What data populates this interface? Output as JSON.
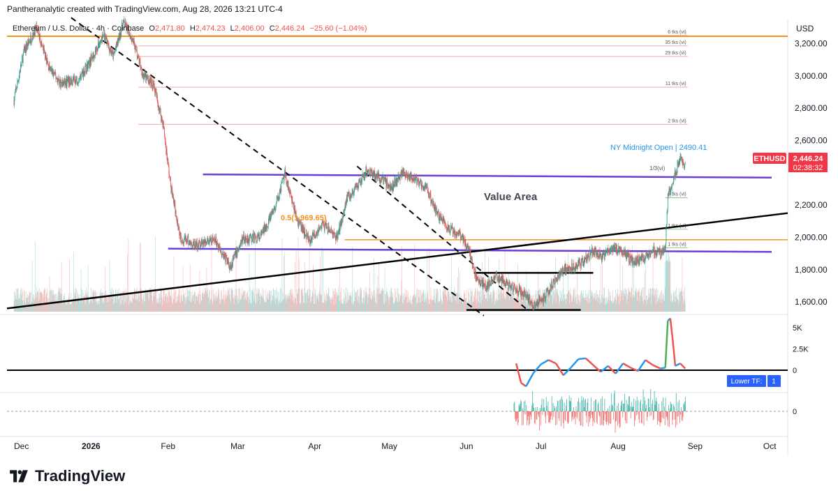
{
  "header": {
    "credit": "Pantheranalytic created with TradingView.com, Aug 28, 2026 13:21 UTC-4"
  },
  "branding": {
    "name": "TradingView"
  },
  "colors": {
    "up": "#26a69a",
    "down": "#ef5350",
    "purple": "#6a3fd6",
    "orange": "#f7931a",
    "black": "#000000",
    "symbol_badge": "#f23645",
    "blue_label": "#2962ff",
    "nymo": "#2196f3",
    "green_line": "#4caf50",
    "level_line": "#e57373"
  },
  "chart_data": [
    {
      "type": "candlestick",
      "symbol_line": {
        "name": "Ethereum / U.S. Dollar · 4h · Coinbase",
        "o_label": "O",
        "o": "2,471.80",
        "h_label": "H",
        "h": "2,474.23",
        "l_label": "L",
        "l": "2,406.00",
        "c_label": "C",
        "c": "2,446.24",
        "change": "−25.60 (−1.04%)"
      },
      "currency": "USD",
      "y_ticks": [
        "3,200.00",
        "3,000.00",
        "2,800.00",
        "2,600.00",
        "2,200.00",
        "2,000.00",
        "1,800.00",
        "1,600.00"
      ],
      "y_tick_values": [
        3200,
        3000,
        2800,
        2600,
        2200,
        2000,
        1800,
        1600
      ],
      "ylim": [
        1540,
        3340
      ],
      "x_ticks": [
        "Dec",
        "2026",
        "Feb",
        "Mar",
        "Apr",
        "May",
        "Jun",
        "Jul",
        "Aug",
        "Sep",
        "Oct"
      ],
      "price_label": {
        "symbol": "ETHUSD",
        "price": "2,446.24",
        "countdown": "02:38:32",
        "value": 2446.24
      },
      "annotations": {
        "value_area": "Value Area",
        "ny_midnight": "NY Midnight Open | 2490.41",
        "fib": "0.5(1,969.65)",
        "dashed_label": "1/3(vi)"
      },
      "levels": [
        {
          "label": "6 tks (vi)",
          "price": 3250
        },
        {
          "label": "35 tks (vi)",
          "price": 3185
        },
        {
          "label": "29 tks (vi)",
          "price": 3120
        },
        {
          "label": "11 tks (vi)",
          "price": 2930
        },
        {
          "label": "2 tks (vi)",
          "price": 2700
        },
        {
          "label": "5 tks (vi)",
          "price": 2245
        },
        {
          "label": "1 tks (vi)",
          "price": 2050
        },
        {
          "label": "1 tks (vi)",
          "price": 1935
        }
      ],
      "key_lines": {
        "orange_top": 3245,
        "orange_mid": 1985,
        "purple_upper": 2390,
        "purple_lower": 1930,
        "black_upper": 1780,
        "black_lower": 1550
      },
      "price_path": [
        [
          "2025-11-25",
          2950
        ],
        [
          "2025-12-01",
          2850
        ],
        [
          "2025-12-05",
          3150
        ],
        [
          "2025-12-10",
          3300
        ],
        [
          "2025-12-15",
          3050
        ],
        [
          "2025-12-20",
          2950
        ],
        [
          "2025-12-27",
          2980
        ],
        [
          "2026-01-01",
          3100
        ],
        [
          "2026-01-06",
          3250
        ],
        [
          "2026-01-10",
          3120
        ],
        [
          "2026-01-14",
          3330
        ],
        [
          "2026-01-18",
          3220
        ],
        [
          "2026-01-22",
          3000
        ],
        [
          "2026-01-26",
          2950
        ],
        [
          "2026-01-30",
          2700
        ],
        [
          "2026-02-02",
          2320
        ],
        [
          "2026-02-06",
          2000
        ],
        [
          "2026-02-12",
          1950
        ],
        [
          "2026-02-20",
          1980
        ],
        [
          "2026-02-26",
          1820
        ],
        [
          "2026-03-03",
          1990
        ],
        [
          "2026-03-10",
          2000
        ],
        [
          "2026-03-16",
          2180
        ],
        [
          "2026-03-20",
          2390
        ],
        [
          "2026-03-25",
          2100
        ],
        [
          "2026-03-30",
          1980
        ],
        [
          "2026-04-04",
          2080
        ],
        [
          "2026-04-10",
          2000
        ],
        [
          "2026-04-14",
          2250
        ],
        [
          "2026-04-18",
          2300
        ],
        [
          "2026-04-22",
          2420
        ],
        [
          "2026-04-28",
          2360
        ],
        [
          "2026-05-02",
          2310
        ],
        [
          "2026-05-06",
          2400
        ],
        [
          "2026-05-12",
          2350
        ],
        [
          "2026-05-16",
          2300
        ],
        [
          "2026-05-20",
          2150
        ],
        [
          "2026-05-25",
          2050
        ],
        [
          "2026-05-30",
          2010
        ],
        [
          "2026-06-02",
          1930
        ],
        [
          "2026-06-05",
          1740
        ],
        [
          "2026-06-09",
          1700
        ],
        [
          "2026-06-13",
          1760
        ],
        [
          "2026-06-17",
          1720
        ],
        [
          "2026-06-21",
          1680
        ],
        [
          "2026-06-25",
          1640
        ],
        [
          "2026-06-28",
          1580
        ],
        [
          "2026-07-02",
          1620
        ],
        [
          "2026-07-06",
          1720
        ],
        [
          "2026-07-10",
          1800
        ],
        [
          "2026-07-14",
          1820
        ],
        [
          "2026-07-18",
          1850
        ],
        [
          "2026-07-22",
          1920
        ],
        [
          "2026-07-26",
          1880
        ],
        [
          "2026-07-30",
          1940
        ],
        [
          "2026-08-03",
          1910
        ],
        [
          "2026-08-07",
          1850
        ],
        [
          "2026-08-11",
          1870
        ],
        [
          "2026-08-15",
          1920
        ],
        [
          "2026-08-18",
          1900
        ],
        [
          "2026-08-20",
          1930
        ],
        [
          "2026-08-21",
          2250
        ],
        [
          "2026-08-24",
          2400
        ],
        [
          "2026-08-26",
          2480
        ],
        [
          "2026-08-28",
          2446
        ]
      ]
    },
    {
      "type": "line",
      "name": "Lower TF panel",
      "y_ticks": [
        "5K",
        "2.5K",
        "0"
      ],
      "y_tick_values": [
        5000,
        2500,
        0
      ],
      "ylim": [
        -2500,
        6400
      ],
      "button_labels": {
        "label": "Lower TF:",
        "value": "1"
      },
      "points": [
        [
          "2026-06-21",
          800
        ],
        [
          "2026-06-23",
          -1500
        ],
        [
          "2026-06-25",
          -1900
        ],
        [
          "2026-06-28",
          -300
        ],
        [
          "2026-07-01",
          700
        ],
        [
          "2026-07-04",
          1200
        ],
        [
          "2026-07-07",
          800
        ],
        [
          "2026-07-10",
          -600
        ],
        [
          "2026-07-13",
          300
        ],
        [
          "2026-07-16",
          1300
        ],
        [
          "2026-07-19",
          1400
        ],
        [
          "2026-07-22",
          600
        ],
        [
          "2026-07-25",
          -200
        ],
        [
          "2026-07-28",
          500
        ],
        [
          "2026-07-31",
          -400
        ],
        [
          "2026-08-03",
          800
        ],
        [
          "2026-08-06",
          300
        ],
        [
          "2026-08-09",
          -100
        ],
        [
          "2026-08-12",
          1200
        ],
        [
          "2026-08-15",
          600
        ],
        [
          "2026-08-18",
          200
        ],
        [
          "2026-08-20",
          300
        ],
        [
          "2026-08-21",
          5800
        ],
        [
          "2026-08-22",
          6100
        ],
        [
          "2026-08-23",
          3500
        ],
        [
          "2026-08-24",
          500
        ],
        [
          "2026-08-26",
          800
        ],
        [
          "2026-08-28",
          200
        ]
      ]
    },
    {
      "type": "histogram",
      "name": "Delta panel",
      "y_ticks": [
        "0"
      ],
      "y_tick_values": [
        0
      ],
      "x_range": [
        "2026-06-20",
        "2026-08-28"
      ]
    }
  ]
}
